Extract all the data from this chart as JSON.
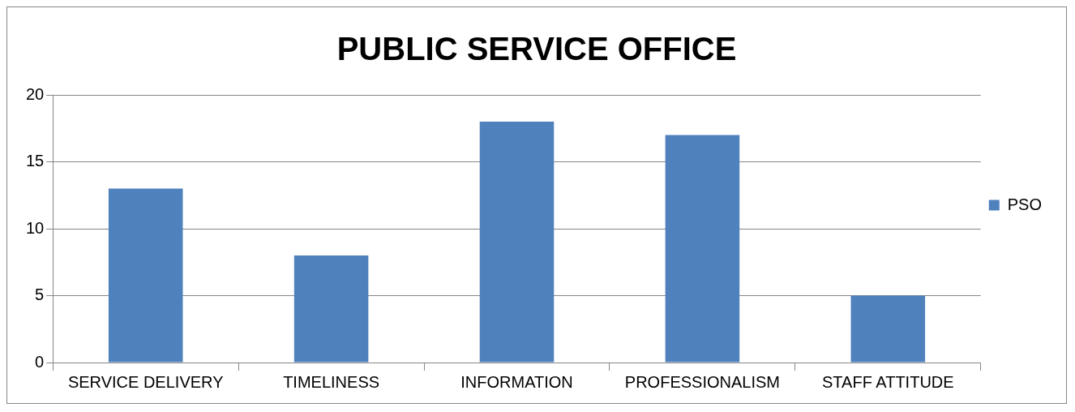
{
  "chart_data": {
    "type": "bar",
    "title": "PUBLIC SERVICE OFFICE",
    "categories": [
      "SERVICE DELIVERY",
      "TIMELINESS",
      "INFORMATION",
      "PROFESSIONALISM",
      "STAFF ATTITUDE"
    ],
    "series": [
      {
        "name": "PSO",
        "color": "#4f81bd",
        "values": [
          13,
          8,
          18,
          17,
          5
        ]
      }
    ],
    "ylim": [
      0,
      20
    ],
    "yticks": [
      0,
      5,
      10,
      15,
      20
    ],
    "grid": "y",
    "legend": "right"
  }
}
